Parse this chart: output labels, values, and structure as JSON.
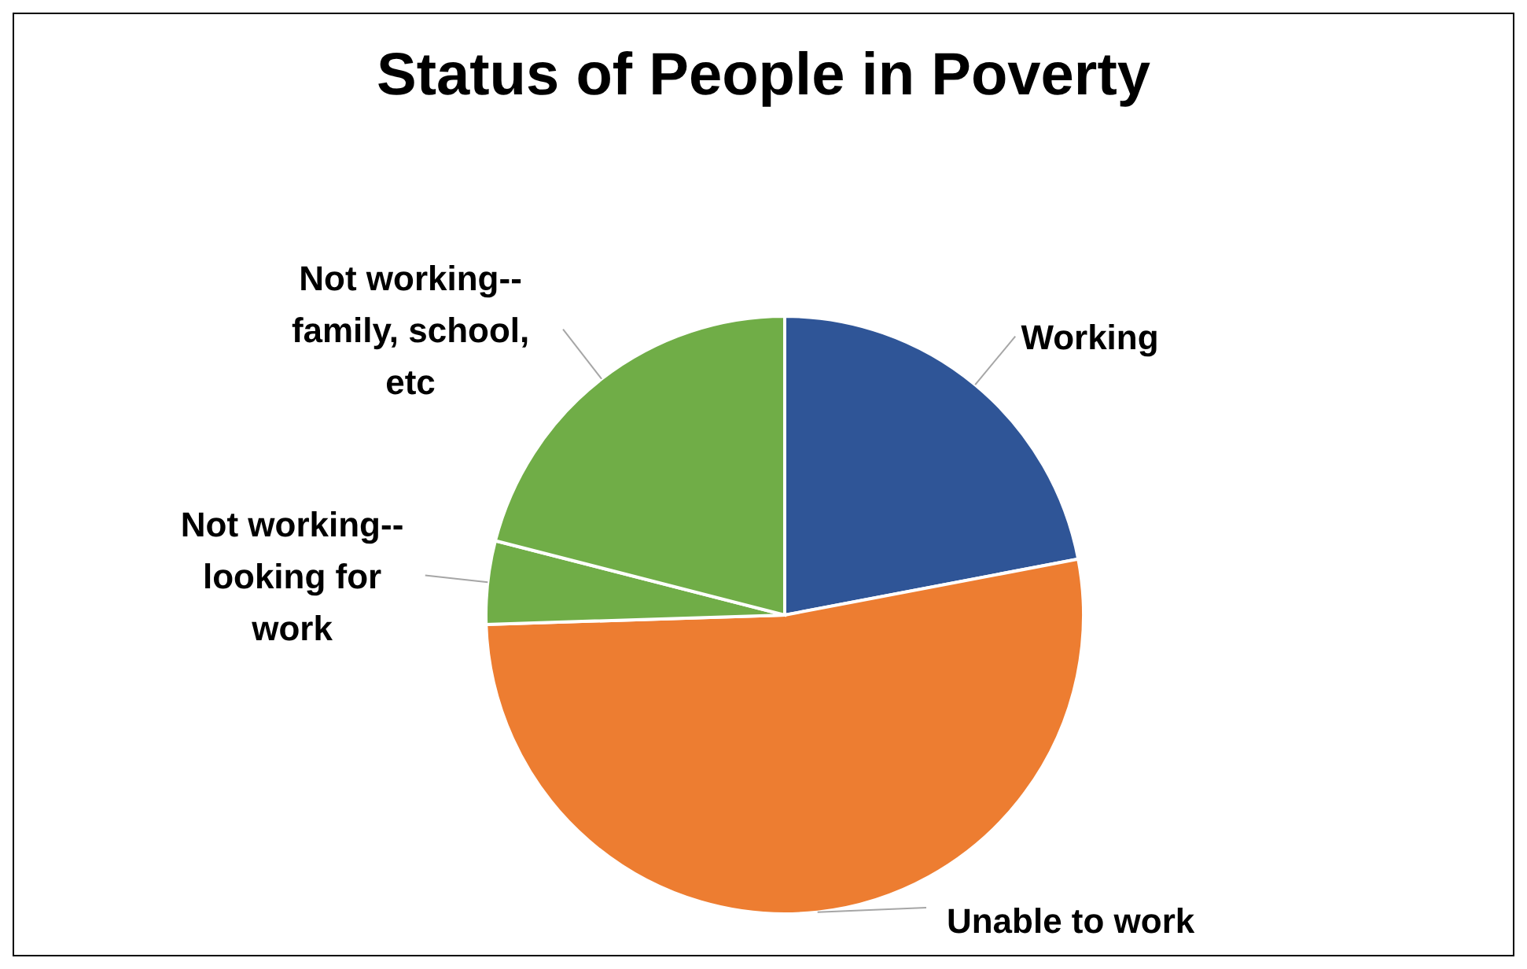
{
  "chart_data": {
    "type": "pie",
    "title": "Status of People in Poverty",
    "categories": [
      "Working",
      "Unable to work",
      "Not working--looking for work",
      "Not working--family, school, etc"
    ],
    "values": [
      22,
      52.5,
      4.5,
      21
    ],
    "colors": [
      "#2f5597",
      "#ed7d31",
      "#70ad47",
      "#70ad47"
    ],
    "legend": false
  }
}
